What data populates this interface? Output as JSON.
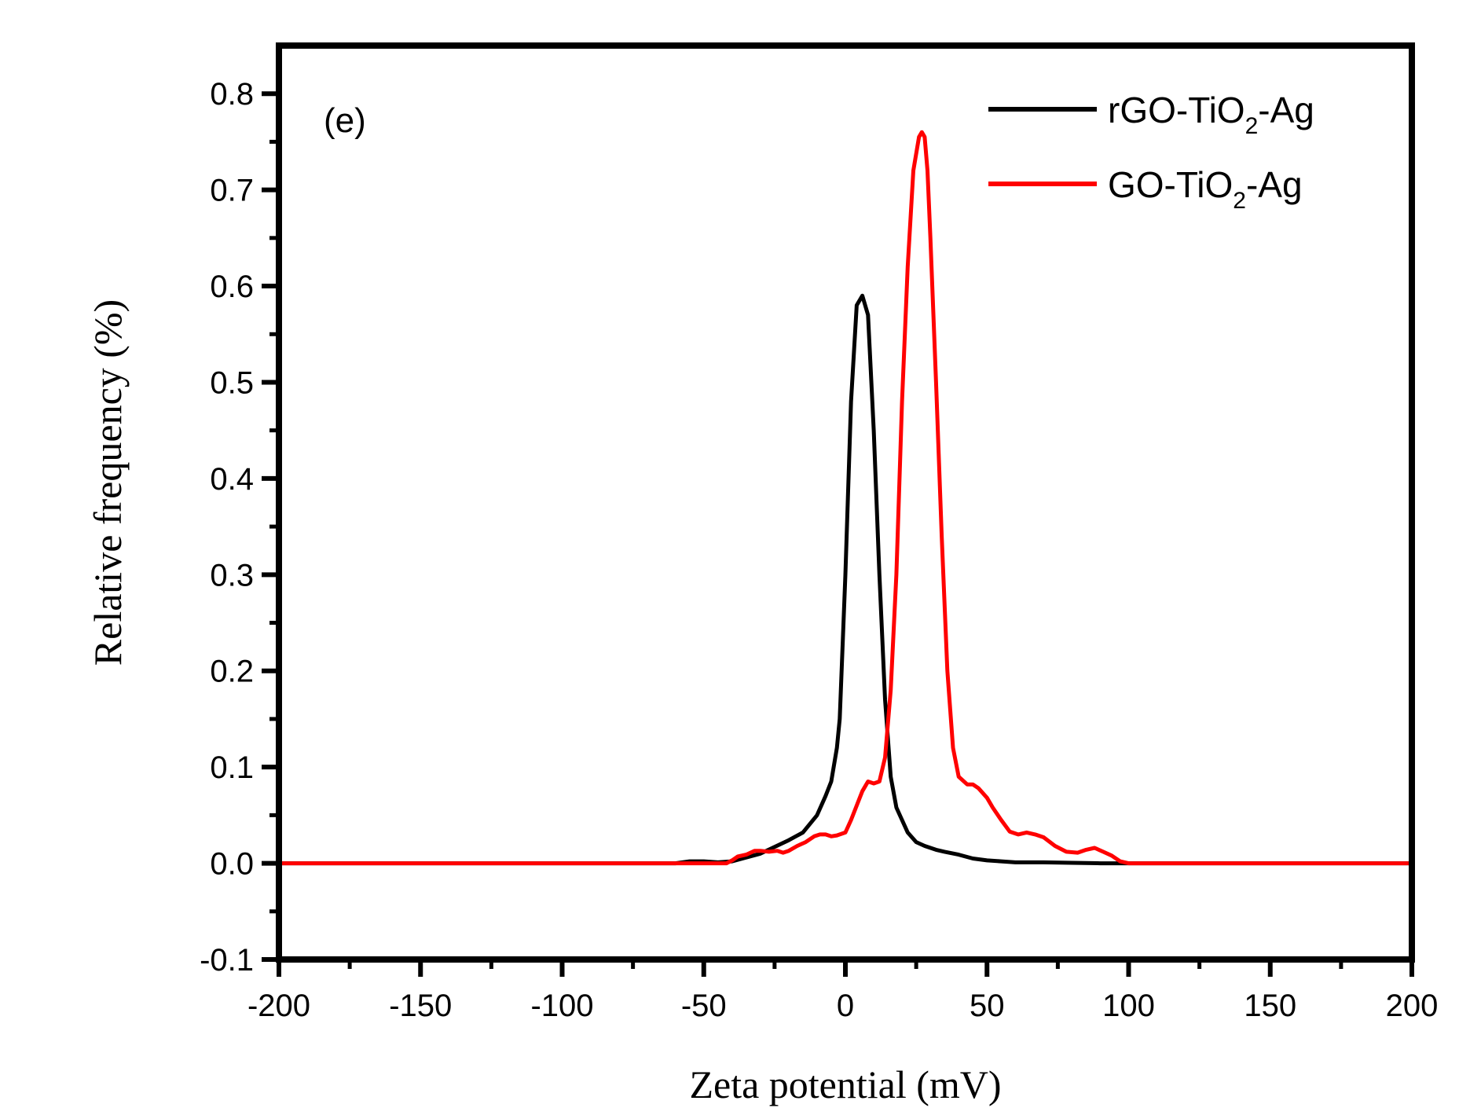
{
  "chart_data": {
    "type": "line",
    "panel_label": "(e)",
    "xlabel": "Zeta potential (mV)",
    "ylabel": "Relative frequency (%)",
    "xlim": [
      -200,
      200
    ],
    "ylim": [
      -0.1,
      0.85
    ],
    "x_ticks": [
      -200,
      -150,
      -100,
      -50,
      0,
      50,
      100,
      150,
      200
    ],
    "x_tick_labels": [
      "-200",
      "-150",
      "-100",
      "-50",
      "0",
      "50",
      "100",
      "150",
      "200"
    ],
    "y_ticks": [
      -0.1,
      0.0,
      0.1,
      0.2,
      0.3,
      0.4,
      0.5,
      0.6,
      0.7,
      0.8
    ],
    "y_tick_labels": [
      "-0.1",
      "0.0",
      "0.1",
      "0.2",
      "0.3",
      "0.4",
      "0.5",
      "0.6",
      "0.7",
      "0.8"
    ],
    "legend_position": "top-right",
    "series": [
      {
        "name": "rGO-TiO2-Ag",
        "legend_main": "rGO-TiO",
        "legend_sub": "2",
        "legend_tail": "-Ag",
        "color": "#000000",
        "x": [
          -200,
          -60,
          -55,
          -50,
          -45,
          -40,
          -35,
          -30,
          -25,
          -20,
          -15,
          -10,
          -7,
          -5,
          -3,
          -2,
          0,
          2,
          4,
          6,
          8,
          10,
          12,
          14,
          16,
          18,
          20,
          22,
          25,
          28,
          32,
          35,
          40,
          45,
          50,
          55,
          60,
          70,
          80,
          90,
          100,
          200
        ],
        "y": [
          0.0,
          0.0,
          0.002,
          0.002,
          0.001,
          0.002,
          0.006,
          0.01,
          0.017,
          0.024,
          0.032,
          0.05,
          0.07,
          0.085,
          0.12,
          0.15,
          0.3,
          0.48,
          0.58,
          0.59,
          0.57,
          0.45,
          0.3,
          0.17,
          0.09,
          0.058,
          0.045,
          0.032,
          0.022,
          0.018,
          0.014,
          0.012,
          0.009,
          0.005,
          0.003,
          0.002,
          0.001,
          0.001,
          0.0005,
          0.0,
          0.0,
          0.0
        ]
      },
      {
        "name": "GO-TiO2-Ag",
        "legend_main": "GO-TiO",
        "legend_sub": "2",
        "legend_tail": "-Ag",
        "color": "#ff0000",
        "x": [
          -200,
          -42,
          -40,
          -38,
          -35,
          -32,
          -30,
          -27,
          -24,
          -22,
          -20,
          -17,
          -14,
          -11,
          -9,
          -7,
          -5,
          -3,
          0,
          2,
          4,
          6,
          8,
          10,
          12,
          14,
          16,
          18,
          20,
          22,
          24,
          26,
          27,
          28,
          29,
          30,
          32,
          34,
          36,
          38,
          40,
          43,
          45,
          47,
          50,
          52,
          55,
          58,
          61,
          64,
          67,
          70,
          74,
          78,
          82,
          85,
          88,
          91,
          94,
          97,
          100,
          200
        ],
        "y": [
          0.0,
          0.0,
          0.003,
          0.007,
          0.009,
          0.013,
          0.013,
          0.012,
          0.013,
          0.011,
          0.013,
          0.018,
          0.022,
          0.028,
          0.03,
          0.03,
          0.028,
          0.029,
          0.032,
          0.045,
          0.06,
          0.075,
          0.085,
          0.083,
          0.085,
          0.11,
          0.18,
          0.3,
          0.48,
          0.62,
          0.72,
          0.755,
          0.76,
          0.755,
          0.72,
          0.65,
          0.5,
          0.34,
          0.2,
          0.12,
          0.09,
          0.082,
          0.082,
          0.078,
          0.068,
          0.058,
          0.045,
          0.033,
          0.03,
          0.032,
          0.03,
          0.027,
          0.018,
          0.012,
          0.011,
          0.014,
          0.016,
          0.012,
          0.008,
          0.002,
          0.0,
          0.0
        ]
      }
    ]
  }
}
